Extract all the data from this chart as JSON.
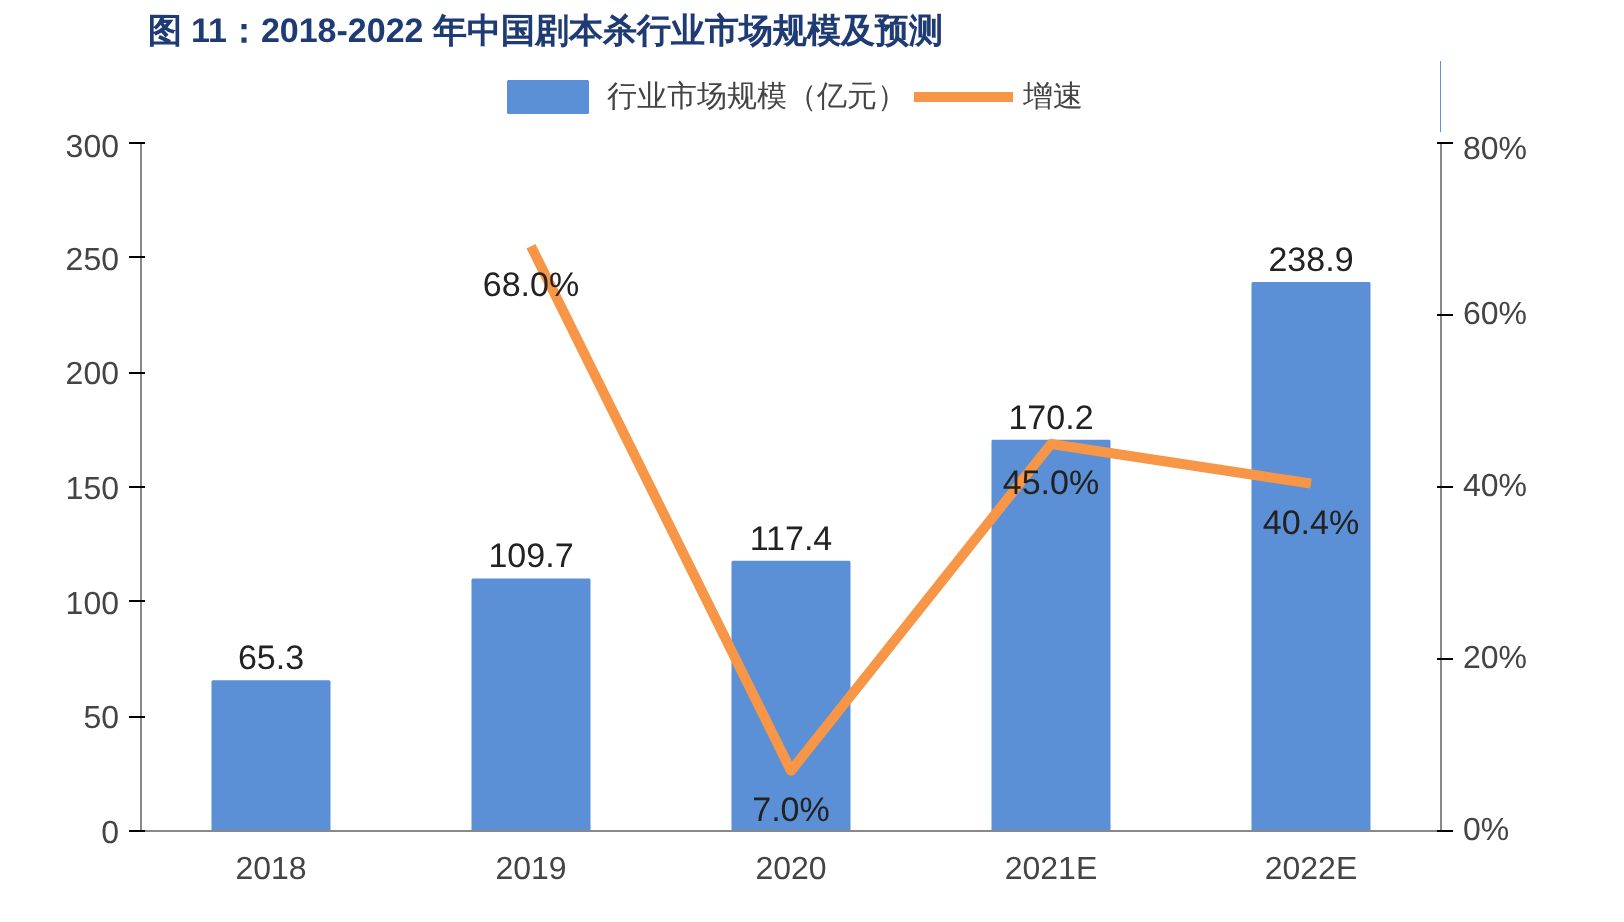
{
  "chart_data": {
    "type": "bar",
    "title": "图 11：2018-2022 年中国剧本杀行业市场规模及预测",
    "categories": [
      "2018",
      "2019",
      "2020",
      "2021E",
      "2022E"
    ],
    "series": [
      {
        "name": "行业市场规模（亿元）",
        "color": "#5b8fd6",
        "values": [
          65.3,
          109.7,
          117.4,
          170.2,
          238.9
        ],
        "value_labels": [
          "65.3",
          "109.7",
          "117.4",
          "170.2",
          "238.9"
        ]
      },
      {
        "name": "增速",
        "type": "line",
        "axis": "y2",
        "color": "#f79646",
        "values": [
          null,
          68.0,
          7.0,
          45.0,
          40.4
        ],
        "value_labels": [
          null,
          "68.0%",
          "7.0%",
          "45.0%",
          "40.4%"
        ]
      }
    ],
    "ylim": [
      0,
      300
    ],
    "yticks": [
      0,
      50,
      100,
      150,
      200,
      250,
      300
    ],
    "y2lim": [
      0,
      80
    ],
    "y2ticks": [
      {
        "value": 0,
        "label": "0%"
      },
      {
        "value": 20,
        "label": "20%"
      },
      {
        "value": 40,
        "label": "40%"
      },
      {
        "value": 60,
        "label": "60%"
      },
      {
        "value": 80,
        "label": "80%"
      }
    ],
    "legend": "top",
    "grid": false
  }
}
